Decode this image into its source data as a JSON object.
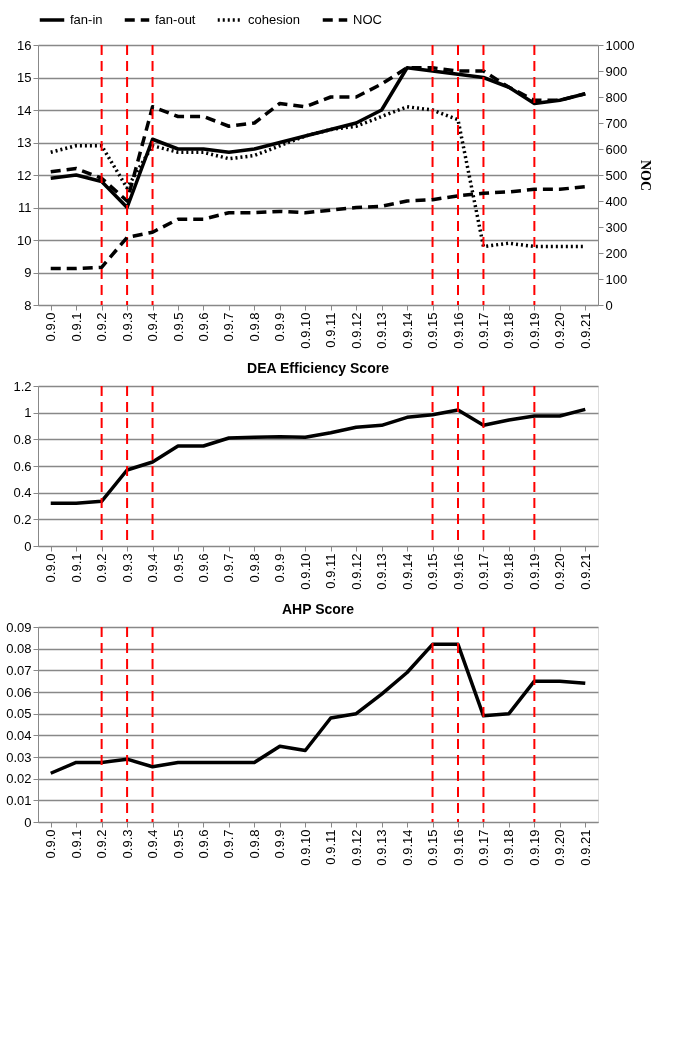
{
  "chart_data": [
    {
      "type": "line",
      "categories": [
        "0.9.0",
        "0.9.1",
        "0.9.2",
        "0.9.3",
        "0.9.4",
        "0.9.5",
        "0.9.6",
        "0.9.7",
        "0.9.8",
        "0.9.9",
        "0.9.10",
        "0.9.11",
        "0.9.12",
        "0.9.13",
        "0.9.14",
        "0.9.15",
        "0.9.16",
        "0.9.17",
        "0.9.18",
        "0.9.19",
        "0.9.20",
        "0.9.21"
      ],
      "y2label": "NOC",
      "ylim": [
        8,
        16
      ],
      "yticks": [
        8,
        9,
        10,
        11,
        12,
        13,
        14,
        15,
        16
      ],
      "y2lim": [
        0,
        1000
      ],
      "y2ticks": [
        0,
        100,
        200,
        300,
        400,
        500,
        600,
        700,
        800,
        900,
        1000
      ],
      "grid": "y",
      "legend": "top",
      "series": [
        {
          "name": "fan-in",
          "color": "#000000",
          "line_style": "solid",
          "values": [
            11.9,
            12.0,
            11.8,
            11.0,
            13.1,
            12.8,
            12.8,
            12.7,
            12.8,
            13.0,
            13.2,
            13.4,
            13.6,
            14.0,
            15.3,
            15.2,
            15.1,
            15.0,
            14.7,
            14.2,
            14.3,
            14.5
          ]
        },
        {
          "name": "fan-out",
          "color": "#000000",
          "line_style": "dashed",
          "values": [
            12.1,
            12.2,
            11.9,
            11.2,
            14.1,
            13.8,
            13.8,
            13.5,
            13.6,
            14.2,
            14.1,
            14.4,
            14.4,
            14.8,
            15.3,
            15.3,
            15.2,
            15.2,
            14.7,
            14.3,
            14.3,
            14.5
          ]
        },
        {
          "name": "cohesion",
          "color": "#000000",
          "line_style": "dotted",
          "values": [
            12.7,
            12.9,
            12.9,
            11.6,
            12.9,
            12.7,
            12.7,
            12.5,
            12.6,
            12.9,
            13.2,
            13.4,
            13.5,
            13.8,
            14.1,
            14.0,
            13.7,
            9.8,
            9.9,
            9.8,
            9.8,
            9.8
          ]
        },
        {
          "name": "NOC",
          "color": "#000000",
          "line_style": "dashed",
          "axis": "y2",
          "values": [
            140,
            140,
            145,
            260,
            280,
            330,
            330,
            355,
            355,
            360,
            355,
            365,
            375,
            380,
            400,
            405,
            420,
            430,
            435,
            445,
            445,
            455
          ]
        }
      ],
      "ref_lines": [
        {
          "axis": "x",
          "value": "0.9.2",
          "color": "#ff0000",
          "line_style": "dashed"
        },
        {
          "axis": "x",
          "value": "0.9.3",
          "color": "#ff0000",
          "line_style": "dashed"
        },
        {
          "axis": "x",
          "value": "0.9.4",
          "color": "#ff0000",
          "line_style": "dashed"
        },
        {
          "axis": "x",
          "value": "0.9.15",
          "color": "#ff0000",
          "line_style": "dashed"
        },
        {
          "axis": "x",
          "value": "0.9.16",
          "color": "#ff0000",
          "line_style": "dashed"
        },
        {
          "axis": "x",
          "value": "0.9.17",
          "color": "#ff0000",
          "line_style": "dashed"
        },
        {
          "axis": "x",
          "value": "0.9.19",
          "color": "#ff0000",
          "line_style": "dashed"
        }
      ]
    },
    {
      "type": "line",
      "title": "DEA Efficiency Score",
      "categories": [
        "0.9.0",
        "0.9.1",
        "0.9.2",
        "0.9.3",
        "0.9.4",
        "0.9.5",
        "0.9.6",
        "0.9.7",
        "0.9.8",
        "0.9.9",
        "0.9.10",
        "0.9.11",
        "0.9.12",
        "0.9.13",
        "0.9.14",
        "0.9.15",
        "0.9.16",
        "0.9.17",
        "0.9.18",
        "0.9.19",
        "0.9.20",
        "0.9.21"
      ],
      "ylim": [
        0,
        1.2
      ],
      "yticks": [
        0,
        0.2,
        0.4,
        0.6,
        0.8,
        1,
        1.2
      ],
      "grid": "y",
      "series": [
        {
          "color": "#000000",
          "line_style": "solid",
          "values": [
            0.32,
            0.32,
            0.335,
            0.57,
            0.63,
            0.75,
            0.75,
            0.81,
            0.815,
            0.82,
            0.815,
            0.85,
            0.89,
            0.905,
            0.965,
            0.985,
            1.02,
            0.905,
            0.945,
            0.975,
            0.975,
            1.025
          ]
        }
      ],
      "ref_lines": [
        {
          "axis": "x",
          "value": "0.9.2",
          "color": "#ff0000",
          "line_style": "dashed"
        },
        {
          "axis": "x",
          "value": "0.9.3",
          "color": "#ff0000",
          "line_style": "dashed"
        },
        {
          "axis": "x",
          "value": "0.9.4",
          "color": "#ff0000",
          "line_style": "dashed"
        },
        {
          "axis": "x",
          "value": "0.9.15",
          "color": "#ff0000",
          "line_style": "dashed"
        },
        {
          "axis": "x",
          "value": "0.9.16",
          "color": "#ff0000",
          "line_style": "dashed"
        },
        {
          "axis": "x",
          "value": "0.9.17",
          "color": "#ff0000",
          "line_style": "dashed"
        },
        {
          "axis": "x",
          "value": "0.9.19",
          "color": "#ff0000",
          "line_style": "dashed"
        }
      ]
    },
    {
      "type": "line",
      "title": "AHP Score",
      "categories": [
        "0.9.0",
        "0.9.1",
        "0.9.2",
        "0.9.3",
        "0.9.4",
        "0.9.5",
        "0.9.6",
        "0.9.7",
        "0.9.8",
        "0.9.9",
        "0.9.10",
        "0.9.11",
        "0.9.12",
        "0.9.13",
        "0.9.14",
        "0.9.15",
        "0.9.16",
        "0.9.17",
        "0.9.18",
        "0.9.19",
        "0.9.20",
        "0.9.21"
      ],
      "ylim": [
        0,
        0.09
      ],
      "yticks": [
        0,
        0.01,
        0.02,
        0.03,
        0.04,
        0.05,
        0.06,
        0.07,
        0.08,
        0.09
      ],
      "grid": "y",
      "series": [
        {
          "color": "#000000",
          "line_style": "solid",
          "values": [
            0.0225,
            0.0275,
            0.0275,
            0.029,
            0.0255,
            0.0275,
            0.0275,
            0.0275,
            0.0275,
            0.035,
            0.033,
            0.048,
            0.05,
            0.059,
            0.069,
            0.082,
            0.082,
            0.049,
            0.05,
            0.065,
            0.065,
            0.064
          ]
        }
      ],
      "ref_lines": [
        {
          "axis": "x",
          "value": "0.9.2",
          "color": "#ff0000",
          "line_style": "dashed"
        },
        {
          "axis": "x",
          "value": "0.9.3",
          "color": "#ff0000",
          "line_style": "dashed"
        },
        {
          "axis": "x",
          "value": "0.9.4",
          "color": "#ff0000",
          "line_style": "dashed"
        },
        {
          "axis": "x",
          "value": "0.9.15",
          "color": "#ff0000",
          "line_style": "dashed"
        },
        {
          "axis": "x",
          "value": "0.9.16",
          "color": "#ff0000",
          "line_style": "dashed"
        },
        {
          "axis": "x",
          "value": "0.9.17",
          "color": "#ff0000",
          "line_style": "dashed"
        },
        {
          "axis": "x",
          "value": "0.9.19",
          "color": "#ff0000",
          "line_style": "dashed"
        }
      ]
    }
  ]
}
